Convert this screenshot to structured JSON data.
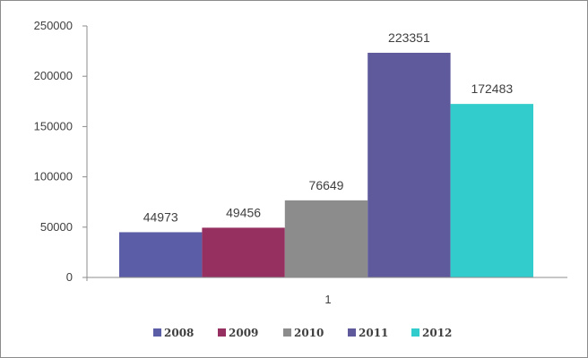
{
  "chart_data": {
    "type": "bar",
    "categories": [
      "1"
    ],
    "series": [
      {
        "name": "2008",
        "values": [
          44973
        ],
        "color": "#5b5ea6"
      },
      {
        "name": "2009",
        "values": [
          49456
        ],
        "color": "#953060"
      },
      {
        "name": "2010",
        "values": [
          76649
        ],
        "color": "#8c8c8c"
      },
      {
        "name": "2011",
        "values": [
          223351
        ],
        "color": "#5f5a9c"
      },
      {
        "name": "2012",
        "values": [
          172483
        ],
        "color": "#33cccc"
      }
    ],
    "data_labels": [
      "44973",
      "49456",
      "76649",
      "223351",
      "172483"
    ],
    "y_ticks": [
      "0",
      "50000",
      "100000",
      "150000",
      "200000",
      "250000"
    ],
    "ylim": [
      0,
      250000
    ],
    "legend_position": "bottom",
    "grid": false
  }
}
